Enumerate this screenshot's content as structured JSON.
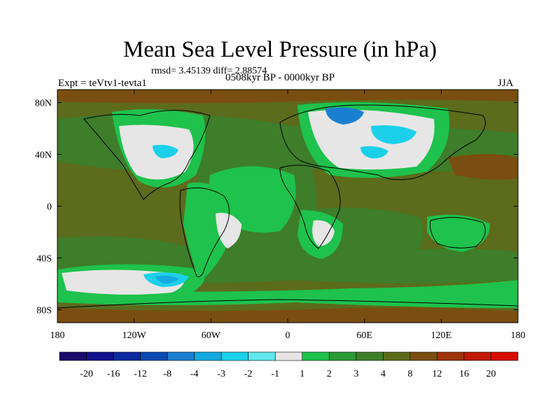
{
  "chart_data": {
    "type": "heatmap",
    "title": "Mean Sea Level Pressure (in hPa)",
    "stats_line": "rmsd= 3.45139 diff= 2.88574",
    "experiment": "Expt = teVtv1-tevta1",
    "period": "0508kyr BP - 0000kyr BP",
    "season": "JJA",
    "variable": "Mean Sea Level Pressure",
    "units": "hPa",
    "x_axis": {
      "range": [
        -180,
        180
      ],
      "ticks": [
        -180,
        -120,
        -60,
        0,
        60,
        120,
        180
      ],
      "tick_labels": [
        "180",
        "120W",
        "60W",
        "0",
        "60E",
        "120E",
        "180"
      ]
    },
    "y_axis": {
      "range": [
        -90,
        90
      ],
      "ticks": [
        80,
        40,
        0,
        -40,
        -80
      ],
      "tick_labels": [
        "80N",
        "40N",
        "0",
        "40S",
        "80S"
      ]
    },
    "colorbar": {
      "labels": [
        "-20",
        "-16",
        "-12",
        "-8",
        "-4",
        "-3",
        "-2",
        "-1",
        "1",
        "2",
        "3",
        "4",
        "8",
        "12",
        "16",
        "20"
      ],
      "colors": [
        "#1a0a6b",
        "#12128c",
        "#0d2aa0",
        "#0a4bb4",
        "#1a7fd0",
        "#12a9e0",
        "#1cd0ea",
        "#62e6ee",
        "#e6e6e6",
        "#1ec24c",
        "#2c9a36",
        "#3e7d2a",
        "#5c6b1c",
        "#7a4e10",
        "#9e3208",
        "#c01a04",
        "#d80c00"
      ]
    },
    "fields": [
      {
        "region": "background",
        "level": 4,
        "note": "most ocean and land in 4 to 8 hPa"
      },
      {
        "region": "North Atlantic subtropical ocean",
        "level": 3
      },
      {
        "region": "Tropical Atlantic / South America",
        "level": 2
      },
      {
        "region": "Eurasia",
        "level": 1
      },
      {
        "region": "Eurasia core",
        "level": -2
      },
      {
        "region": "Scandinavia",
        "level": -3
      },
      {
        "region": "North America",
        "level": 1
      },
      {
        "region": "Hudson Bay",
        "level": -2
      },
      {
        "region": "Southern Pacific",
        "level": 1
      },
      {
        "region": "Southern Pacific core",
        "level": -2
      },
      {
        "region": "Southern Africa",
        "level": 1
      },
      {
        "region": "Tropical South America",
        "level": 1
      },
      {
        "region": "North Pacific",
        "level": 8
      },
      {
        "region": "Central Pacific",
        "level": 8
      }
    ]
  }
}
